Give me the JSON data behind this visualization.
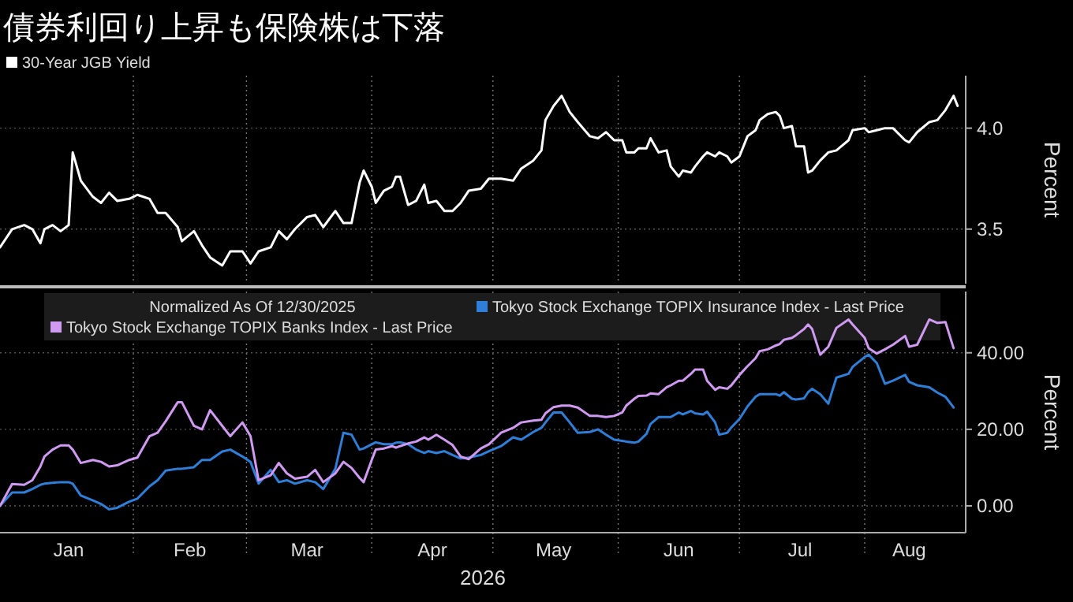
{
  "chart_data": [
    {
      "type": "line",
      "title": "債券利回り上昇も保険株は下落",
      "ylabel": "Percent",
      "legend": "top left",
      "grid": true,
      "tick_labels": "y",
      "xlim": [
        "2025-12-30",
        "2026-08-26"
      ],
      "xticks": [
        {
          "value": "2026-02-01",
          "label": null
        },
        {
          "value": "2026-03-01",
          "label": null
        },
        {
          "value": "2026-04-01",
          "label": null
        },
        {
          "value": "2026-05-01",
          "label": null
        },
        {
          "value": "2026-06-01",
          "label": null
        },
        {
          "value": "2026-07-01",
          "label": null
        },
        {
          "value": "2026-08-01",
          "label": null
        }
      ],
      "ylim": [
        3.23,
        4.26
      ],
      "yticks": [
        {
          "value": 3.5,
          "label": "3.5"
        },
        {
          "value": 4.0,
          "label": "4.0"
        }
      ],
      "series": [
        {
          "name": "30-Year JGB Yield",
          "color": "#ffffff",
          "x": [
            "2025-12-30",
            "2026-01-02",
            "2026-01-05",
            "2026-01-07",
            "2026-01-09",
            "2026-01-10",
            "2026-01-12",
            "2026-01-14",
            "2026-01-16",
            "2026-01-17",
            "2026-01-19",
            "2026-01-22",
            "2026-01-24",
            "2026-01-26",
            "2026-01-28",
            "2026-01-31",
            "2026-02-02",
            "2026-02-05",
            "2026-02-07",
            "2026-02-09",
            "2026-02-12",
            "2026-02-13",
            "2026-02-16",
            "2026-02-18",
            "2026-02-20",
            "2026-02-23",
            "2026-02-25",
            "2026-02-28",
            "2026-03-02",
            "2026-03-04",
            "2026-03-07",
            "2026-03-09",
            "2026-03-11",
            "2026-03-13",
            "2026-03-16",
            "2026-03-18",
            "2026-03-20",
            "2026-03-23",
            "2026-03-25",
            "2026-03-27",
            "2026-03-29",
            "2026-03-30",
            "2026-04-01",
            "2026-04-02",
            "2026-04-04",
            "2026-04-06",
            "2026-04-07",
            "2026-04-08",
            "2026-04-10",
            "2026-04-12",
            "2026-04-14",
            "2026-04-15",
            "2026-04-17",
            "2026-04-19",
            "2026-04-21",
            "2026-04-23",
            "2026-04-25",
            "2026-04-28",
            "2026-04-30",
            "2026-05-03",
            "2026-05-06",
            "2026-05-08",
            "2026-05-11",
            "2026-05-13",
            "2026-05-14",
            "2026-05-16",
            "2026-05-18",
            "2026-05-20",
            "2026-05-22",
            "2026-05-25",
            "2026-05-27",
            "2026-05-29",
            "2026-05-31",
            "2026-06-02",
            "2026-06-03",
            "2026-06-05",
            "2026-06-06",
            "2026-06-08",
            "2026-06-09",
            "2026-06-11",
            "2026-06-13",
            "2026-06-14",
            "2026-06-16",
            "2026-06-17",
            "2026-06-19",
            "2026-06-20",
            "2026-06-22",
            "2026-06-23",
            "2026-06-25",
            "2026-06-26",
            "2026-06-28",
            "2026-06-29",
            "2026-07-01",
            "2026-07-03",
            "2026-07-05",
            "2026-07-06",
            "2026-07-08",
            "2026-07-10",
            "2026-07-11",
            "2026-07-12",
            "2026-07-14",
            "2026-07-15",
            "2026-07-17",
            "2026-07-18",
            "2026-07-19",
            "2026-07-21",
            "2026-07-23",
            "2026-07-25",
            "2026-07-28",
            "2026-07-29",
            "2026-08-01",
            "2026-08-02",
            "2026-08-04",
            "2026-08-06",
            "2026-08-08",
            "2026-08-11",
            "2026-08-12",
            "2026-08-14",
            "2026-08-17",
            "2026-08-19",
            "2026-08-21",
            "2026-08-23",
            "2026-08-24"
          ],
          "values": [
            3.41,
            3.5,
            3.52,
            3.5,
            3.43,
            3.5,
            3.52,
            3.49,
            3.52,
            3.88,
            3.74,
            3.66,
            3.63,
            3.68,
            3.64,
            3.65,
            3.67,
            3.65,
            3.58,
            3.58,
            3.51,
            3.44,
            3.49,
            3.42,
            3.36,
            3.32,
            3.39,
            3.39,
            3.33,
            3.39,
            3.41,
            3.49,
            3.45,
            3.5,
            3.56,
            3.57,
            3.51,
            3.59,
            3.53,
            3.53,
            3.73,
            3.79,
            3.71,
            3.63,
            3.69,
            3.71,
            3.76,
            3.76,
            3.62,
            3.64,
            3.72,
            3.63,
            3.64,
            3.59,
            3.59,
            3.63,
            3.69,
            3.7,
            3.75,
            3.75,
            3.74,
            3.8,
            3.84,
            3.89,
            4.04,
            4.11,
            4.16,
            4.08,
            4.03,
            3.96,
            3.95,
            3.98,
            3.94,
            3.94,
            3.88,
            3.88,
            3.9,
            3.9,
            3.95,
            3.88,
            3.89,
            3.81,
            3.76,
            3.79,
            3.78,
            3.81,
            3.86,
            3.88,
            3.86,
            3.88,
            3.86,
            3.83,
            3.86,
            3.96,
            3.99,
            4.04,
            4.07,
            4.08,
            4.06,
            4.0,
            4.01,
            3.91,
            3.91,
            3.78,
            3.79,
            3.84,
            3.88,
            3.89,
            3.94,
            3.99,
            4.0,
            3.98,
            3.99,
            4.0,
            4.0,
            3.94,
            3.93,
            3.98,
            4.03,
            4.04,
            4.09,
            4.16,
            4.11
          ]
        }
      ]
    },
    {
      "type": "line",
      "ylabel": "Percent",
      "xlabel": "2026",
      "legend": "top",
      "legend_title": "Normalized As Of 12/30/2025",
      "grid": true,
      "xlim": [
        "2025-12-30",
        "2026-08-26"
      ],
      "xticks": [
        {
          "value": "2026-01-16",
          "label": "Jan"
        },
        {
          "value": "2026-02-01",
          "label": null
        },
        {
          "value": "2026-02-15",
          "label": "Feb"
        },
        {
          "value": "2026-03-01",
          "label": null
        },
        {
          "value": "2026-03-16",
          "label": "Mar"
        },
        {
          "value": "2026-04-01",
          "label": null
        },
        {
          "value": "2026-04-16",
          "label": "Apr"
        },
        {
          "value": "2026-05-01",
          "label": null
        },
        {
          "value": "2026-05-16",
          "label": "May"
        },
        {
          "value": "2026-06-01",
          "label": null
        },
        {
          "value": "2026-06-16",
          "label": "Jun"
        },
        {
          "value": "2026-07-01",
          "label": null
        },
        {
          "value": "2026-07-16",
          "label": "Jul"
        },
        {
          "value": "2026-08-01",
          "label": null
        },
        {
          "value": "2026-08-12",
          "label": "Aug"
        }
      ],
      "ylim": [
        -7,
        56
      ],
      "yticks": [
        {
          "value": 0,
          "label": "0.00"
        },
        {
          "value": 20,
          "label": "20.00"
        },
        {
          "value": 40,
          "label": "40.00"
        }
      ],
      "series": [
        {
          "name": "Tokyo Stock Exchange TOPIX Insurance Index - Last Price",
          "color": "#2f7ed8",
          "x": [
            "2025-12-30",
            "2026-01-02",
            "2026-01-05",
            "2026-01-07",
            "2026-01-09",
            "2026-01-10",
            "2026-01-12",
            "2026-01-14",
            "2026-01-16",
            "2026-01-17",
            "2026-01-19",
            "2026-01-22",
            "2026-01-24",
            "2026-01-26",
            "2026-01-28",
            "2026-01-31",
            "2026-02-02",
            "2026-02-05",
            "2026-02-07",
            "2026-02-09",
            "2026-02-12",
            "2026-02-13",
            "2026-02-16",
            "2026-02-18",
            "2026-02-20",
            "2026-02-23",
            "2026-02-25",
            "2026-02-28",
            "2026-03-02",
            "2026-03-04",
            "2026-03-07",
            "2026-03-09",
            "2026-03-11",
            "2026-03-13",
            "2026-03-16",
            "2026-03-18",
            "2026-03-20",
            "2026-03-23",
            "2026-03-25",
            "2026-03-27",
            "2026-03-29",
            "2026-03-30",
            "2026-04-01",
            "2026-04-02",
            "2026-04-04",
            "2026-04-06",
            "2026-04-07",
            "2026-04-08",
            "2026-04-10",
            "2026-04-12",
            "2026-04-14",
            "2026-04-15",
            "2026-04-17",
            "2026-04-19",
            "2026-04-21",
            "2026-04-23",
            "2026-04-25",
            "2026-04-28",
            "2026-04-30",
            "2026-05-03",
            "2026-05-06",
            "2026-05-08",
            "2026-05-11",
            "2026-05-13",
            "2026-05-14",
            "2026-05-16",
            "2026-05-18",
            "2026-05-20",
            "2026-05-22",
            "2026-05-25",
            "2026-05-27",
            "2026-05-29",
            "2026-05-31",
            "2026-06-02",
            "2026-06-03",
            "2026-06-05",
            "2026-06-06",
            "2026-06-08",
            "2026-06-09",
            "2026-06-11",
            "2026-06-13",
            "2026-06-14",
            "2026-06-16",
            "2026-06-17",
            "2026-06-19",
            "2026-06-20",
            "2026-06-22",
            "2026-06-23",
            "2026-06-25",
            "2026-06-26",
            "2026-06-28",
            "2026-06-29",
            "2026-07-01",
            "2026-07-03",
            "2026-07-05",
            "2026-07-06",
            "2026-07-08",
            "2026-07-10",
            "2026-07-11",
            "2026-07-12",
            "2026-07-14",
            "2026-07-15",
            "2026-07-17",
            "2026-07-18",
            "2026-07-19",
            "2026-07-21",
            "2026-07-23",
            "2026-07-25",
            "2026-07-28",
            "2026-07-29",
            "2026-08-01",
            "2026-08-02",
            "2026-08-04",
            "2026-08-06",
            "2026-08-08",
            "2026-08-11",
            "2026-08-12",
            "2026-08-14",
            "2026-08-17",
            "2026-08-19",
            "2026-08-21",
            "2026-08-23"
          ],
          "values": [
            0.0,
            3.5,
            3.5,
            4.4,
            5.5,
            5.8,
            6.0,
            6.2,
            6.2,
            5.8,
            2.7,
            1.4,
            0.5,
            -0.9,
            -0.5,
            1.1,
            1.9,
            5.1,
            6.7,
            9.2,
            9.7,
            9.7,
            10.1,
            12.0,
            12.0,
            14.2,
            14.7,
            12.9,
            11.5,
            5.8,
            9.4,
            6.2,
            6.7,
            5.8,
            6.7,
            6.2,
            4.4,
            9.7,
            19.1,
            18.6,
            14.7,
            15.0,
            16.1,
            16.6,
            16.1,
            16.1,
            16.5,
            16.6,
            16.1,
            14.7,
            13.8,
            14.3,
            13.8,
            14.3,
            13.3,
            12.4,
            12.6,
            13.3,
            14.3,
            15.6,
            17.9,
            17.3,
            19.3,
            20.4,
            21.8,
            24.4,
            24.4,
            21.8,
            19.1,
            19.3,
            20.0,
            18.6,
            17.3,
            17.0,
            16.8,
            16.5,
            16.8,
            18.8,
            21.4,
            23.2,
            23.2,
            23.2,
            24.4,
            23.9,
            24.8,
            24.2,
            23.9,
            24.6,
            21.8,
            18.6,
            19.1,
            20.5,
            22.7,
            26.0,
            28.5,
            29.2,
            29.2,
            29.2,
            28.8,
            29.7,
            28.0,
            27.8,
            28.1,
            29.7,
            30.6,
            29.2,
            26.7,
            33.5,
            34.5,
            36.3,
            38.9,
            39.5,
            37.3,
            31.9,
            32.7,
            34.2,
            32.4,
            31.5,
            31.0,
            29.6,
            28.5,
            25.7
          ]
        },
        {
          "name": "Tokyo Stock Exchange TOPIX Banks Index - Last Price",
          "color": "#d19af2",
          "x": [
            "2025-12-30",
            "2026-01-02",
            "2026-01-05",
            "2026-01-07",
            "2026-01-09",
            "2026-01-10",
            "2026-01-12",
            "2026-01-14",
            "2026-01-16",
            "2026-01-17",
            "2026-01-19",
            "2026-01-22",
            "2026-01-24",
            "2026-01-26",
            "2026-01-28",
            "2026-01-31",
            "2026-02-02",
            "2026-02-05",
            "2026-02-07",
            "2026-02-09",
            "2026-02-12",
            "2026-02-13",
            "2026-02-16",
            "2026-02-18",
            "2026-02-20",
            "2026-02-23",
            "2026-02-25",
            "2026-02-28",
            "2026-03-02",
            "2026-03-04",
            "2026-03-07",
            "2026-03-09",
            "2026-03-11",
            "2026-03-13",
            "2026-03-16",
            "2026-03-18",
            "2026-03-20",
            "2026-03-23",
            "2026-03-25",
            "2026-03-27",
            "2026-03-29",
            "2026-03-30",
            "2026-04-01",
            "2026-04-02",
            "2026-04-04",
            "2026-04-06",
            "2026-04-07",
            "2026-04-08",
            "2026-04-10",
            "2026-04-12",
            "2026-04-14",
            "2026-04-15",
            "2026-04-17",
            "2026-04-19",
            "2026-04-21",
            "2026-04-23",
            "2026-04-25",
            "2026-04-28",
            "2026-04-30",
            "2026-05-03",
            "2026-05-06",
            "2026-05-08",
            "2026-05-11",
            "2026-05-13",
            "2026-05-14",
            "2026-05-16",
            "2026-05-18",
            "2026-05-20",
            "2026-05-22",
            "2026-05-25",
            "2026-05-27",
            "2026-05-29",
            "2026-05-31",
            "2026-06-02",
            "2026-06-03",
            "2026-06-05",
            "2026-06-06",
            "2026-06-08",
            "2026-06-09",
            "2026-06-11",
            "2026-06-13",
            "2026-06-14",
            "2026-06-16",
            "2026-06-17",
            "2026-06-19",
            "2026-06-20",
            "2026-06-22",
            "2026-06-23",
            "2026-06-25",
            "2026-06-26",
            "2026-06-28",
            "2026-06-29",
            "2026-07-01",
            "2026-07-03",
            "2026-07-05",
            "2026-07-06",
            "2026-07-08",
            "2026-07-10",
            "2026-07-11",
            "2026-07-12",
            "2026-07-14",
            "2026-07-15",
            "2026-07-17",
            "2026-07-18",
            "2026-07-19",
            "2026-07-21",
            "2026-07-23",
            "2026-07-25",
            "2026-07-28",
            "2026-07-29",
            "2026-08-01",
            "2026-08-02",
            "2026-08-04",
            "2026-08-06",
            "2026-08-08",
            "2026-08-11",
            "2026-08-12",
            "2026-08-14",
            "2026-08-17",
            "2026-08-19",
            "2026-08-21",
            "2026-08-23"
          ],
          "values": [
            0.0,
            5.7,
            5.5,
            6.7,
            10.3,
            12.9,
            14.7,
            15.8,
            15.8,
            14.7,
            11.2,
            12.0,
            11.5,
            10.3,
            10.6,
            12.0,
            12.6,
            18.2,
            19.1,
            22.1,
            27.1,
            27.1,
            20.9,
            20.0,
            25.0,
            20.9,
            18.2,
            21.8,
            18.2,
            6.7,
            8.0,
            11.2,
            8.5,
            7.1,
            7.6,
            9.4,
            6.2,
            8.5,
            11.5,
            9.9,
            7.3,
            6.2,
            12.0,
            14.7,
            15.0,
            15.6,
            15.2,
            15.6,
            16.3,
            16.8,
            17.9,
            17.3,
            18.6,
            17.3,
            15.9,
            12.9,
            12.2,
            15.0,
            16.1,
            19.1,
            20.4,
            21.8,
            22.3,
            22.5,
            24.2,
            25.8,
            26.2,
            26.2,
            25.7,
            23.5,
            23.5,
            23.2,
            23.5,
            24.4,
            26.2,
            28.0,
            28.7,
            28.8,
            29.4,
            29.2,
            31.0,
            31.5,
            32.7,
            32.7,
            34.5,
            35.6,
            35.6,
            32.7,
            30.3,
            31.0,
            30.6,
            31.5,
            34.2,
            36.5,
            38.6,
            40.4,
            40.9,
            41.9,
            42.3,
            43.4,
            43.9,
            44.6,
            46.2,
            47.4,
            46.2,
            39.5,
            41.6,
            46.5,
            48.7,
            47.4,
            43.9,
            41.2,
            39.8,
            40.9,
            42.1,
            44.4,
            41.6,
            42.1,
            48.7,
            47.8,
            48.0,
            41.2
          ]
        }
      ]
    }
  ]
}
